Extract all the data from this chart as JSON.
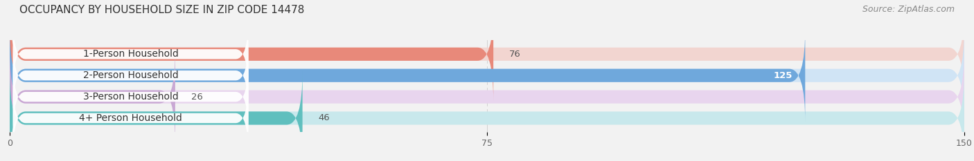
{
  "title": "OCCUPANCY BY HOUSEHOLD SIZE IN ZIP CODE 14478",
  "source": "Source: ZipAtlas.com",
  "categories": [
    "1-Person Household",
    "2-Person Household",
    "3-Person Household",
    "4+ Person Household"
  ],
  "values": [
    76,
    125,
    26,
    46
  ],
  "bar_colors": [
    "#E8897A",
    "#6FA8DC",
    "#C9A8D4",
    "#5FBFBE"
  ],
  "bg_colors": [
    "#F2D5D0",
    "#D0E4F5",
    "#E8D5EE",
    "#C8E8EC"
  ],
  "xlim": [
    0,
    150
  ],
  "xticks": [
    0,
    75,
    150
  ],
  "bar_height": 0.62,
  "background_color": "#F2F2F2",
  "title_fontsize": 11,
  "source_fontsize": 9,
  "label_fontsize": 10,
  "value_fontsize": 9.5
}
